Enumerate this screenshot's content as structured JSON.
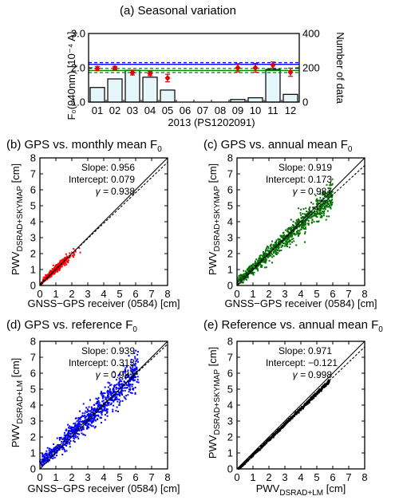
{
  "chart_data": [
    {
      "type": "bar",
      "title": "(a) Seasonal variation",
      "ylabel_left": "F₀(940nm) [10⁻⁴ A]",
      "ylabel_right": "Number of data",
      "xlabel": "2013 (PS1202091)",
      "categories": [
        "01",
        "02",
        "03",
        "04",
        "05",
        "06",
        "07",
        "08",
        "09",
        "10",
        "11",
        "12"
      ],
      "ylim_left": [
        1.0,
        3.0
      ],
      "ylim_right": [
        0,
        400
      ],
      "yticks_left": [
        "1.0",
        "2.0",
        "3.0"
      ],
      "yticks_right": [
        "0",
        "200",
        "400"
      ],
      "counts": [
        85,
        135,
        185,
        145,
        70,
        0,
        0,
        0,
        15,
        25,
        190,
        45
      ],
      "monthly_mean_f0": [
        1.98,
        1.99,
        1.86,
        1.83,
        1.7,
        null,
        null,
        null,
        2.0,
        2.0,
        2.08,
        1.87
      ],
      "monthly_sd_f0": [
        0.06,
        0.05,
        0.07,
        0.06,
        0.11,
        null,
        null,
        null,
        0.12,
        0.13,
        0.09,
        0.12
      ],
      "annual_mean_f0": 1.92,
      "annual_band_f0": [
        1.86,
        1.98
      ],
      "reference_f0": [
        2.1,
        2.15
      ],
      "series_colors": {
        "bars": "#e6f7fb",
        "monthly": "#e00000",
        "annual": "#008000",
        "reference": "#0000ff"
      }
    },
    {
      "type": "scatter",
      "title": "(b) GPS vs. monthly mean F",
      "title_sub": "0",
      "xlabel": "GNSS−GPS receiver (0584) [cm]",
      "ylabel": "PWV",
      "ylabel_sub": "DSRAD+SKYMAP",
      "ylabel_unit": " [cm]",
      "xlim": [
        0,
        8
      ],
      "ylim": [
        0,
        8
      ],
      "ticks": [
        "0",
        "1",
        "2",
        "3",
        "4",
        "5",
        "6",
        "7",
        "8"
      ],
      "stats": {
        "slope_label": "Slope:",
        "slope": "0.956",
        "intercept_label": "Intercept:",
        "intercept": "0.079",
        "gamma_label": "γ =",
        "gamma": "0.938"
      },
      "color": "#ff0000",
      "cloud": {
        "xmin": 0.0,
        "xmax": 2.6,
        "spread": 0.12
      },
      "fit": {
        "slope": 0.956,
        "intercept": 0.079
      }
    },
    {
      "type": "scatter",
      "title": "(c) GPS vs. annual mean F",
      "title_sub": "0",
      "xlabel": "GNSS−GPS receiver (0584) [cm]",
      "ylabel": "PWV",
      "ylabel_sub": "DSRAD+SKYMAP",
      "ylabel_unit": " [cm]",
      "xlim": [
        0,
        8
      ],
      "ylim": [
        0,
        8
      ],
      "ticks": [
        "0",
        "1",
        "2",
        "3",
        "4",
        "5",
        "6",
        "7",
        "8"
      ],
      "stats": {
        "slope_label": "Slope:",
        "slope": "0.919",
        "intercept_label": "Intercept:",
        "intercept": "0.173",
        "gamma_label": "γ =",
        "gamma": "0.987"
      },
      "color": "#007000",
      "cloud": {
        "xmin": 0.0,
        "xmax": 6.0,
        "spread": 0.28
      },
      "fit": {
        "slope": 0.919,
        "intercept": 0.173
      }
    },
    {
      "type": "scatter",
      "title": "(d) GPS vs. reference F",
      "title_sub": "0",
      "xlabel": "GNSS−GPS receiver (0584) [cm]",
      "ylabel": "PWV",
      "ylabel_sub": "DSRAD+LM",
      "ylabel_unit": " [cm]",
      "xlim": [
        0,
        8
      ],
      "ylim": [
        0,
        8
      ],
      "ticks": [
        "0",
        "1",
        "2",
        "3",
        "4",
        "5",
        "6",
        "7",
        "8"
      ],
      "stats": {
        "slope_label": "Slope:",
        "slope": "0.939",
        "intercept_label": "Intercept:",
        "intercept": "0.313",
        "gamma_label": "γ =",
        "gamma": "0.981"
      },
      "color": "#0000ff",
      "cloud": {
        "xmin": 0.0,
        "xmax": 6.2,
        "spread": 0.38
      },
      "fit": {
        "slope": 0.939,
        "intercept": 0.313
      }
    },
    {
      "type": "scatter",
      "title": "(e) Reference vs. annual mean F",
      "title_sub": "0",
      "xlabel": "PWV",
      "xlabel_sub": "DSRAD+LM",
      "xlabel_unit": " [cm]",
      "ylabel": "PWV",
      "ylabel_sub": "DSRAD+SKYMAP",
      "ylabel_unit": " [cm]",
      "xlim": [
        0,
        8
      ],
      "ylim": [
        0,
        8
      ],
      "ticks": [
        "0",
        "1",
        "2",
        "3",
        "4",
        "5",
        "6",
        "7",
        "8"
      ],
      "stats": {
        "slope_label": "Slope:",
        "slope": "0.971",
        "intercept_label": "Intercept:",
        "intercept": "−0.121",
        "gamma_label": "γ =",
        "gamma": "0.998"
      },
      "color": "#000000",
      "cloud": {
        "xmin": 0.0,
        "xmax": 5.8,
        "spread": 0.04
      },
      "fit": {
        "slope": 0.971,
        "intercept": -0.121
      }
    }
  ]
}
